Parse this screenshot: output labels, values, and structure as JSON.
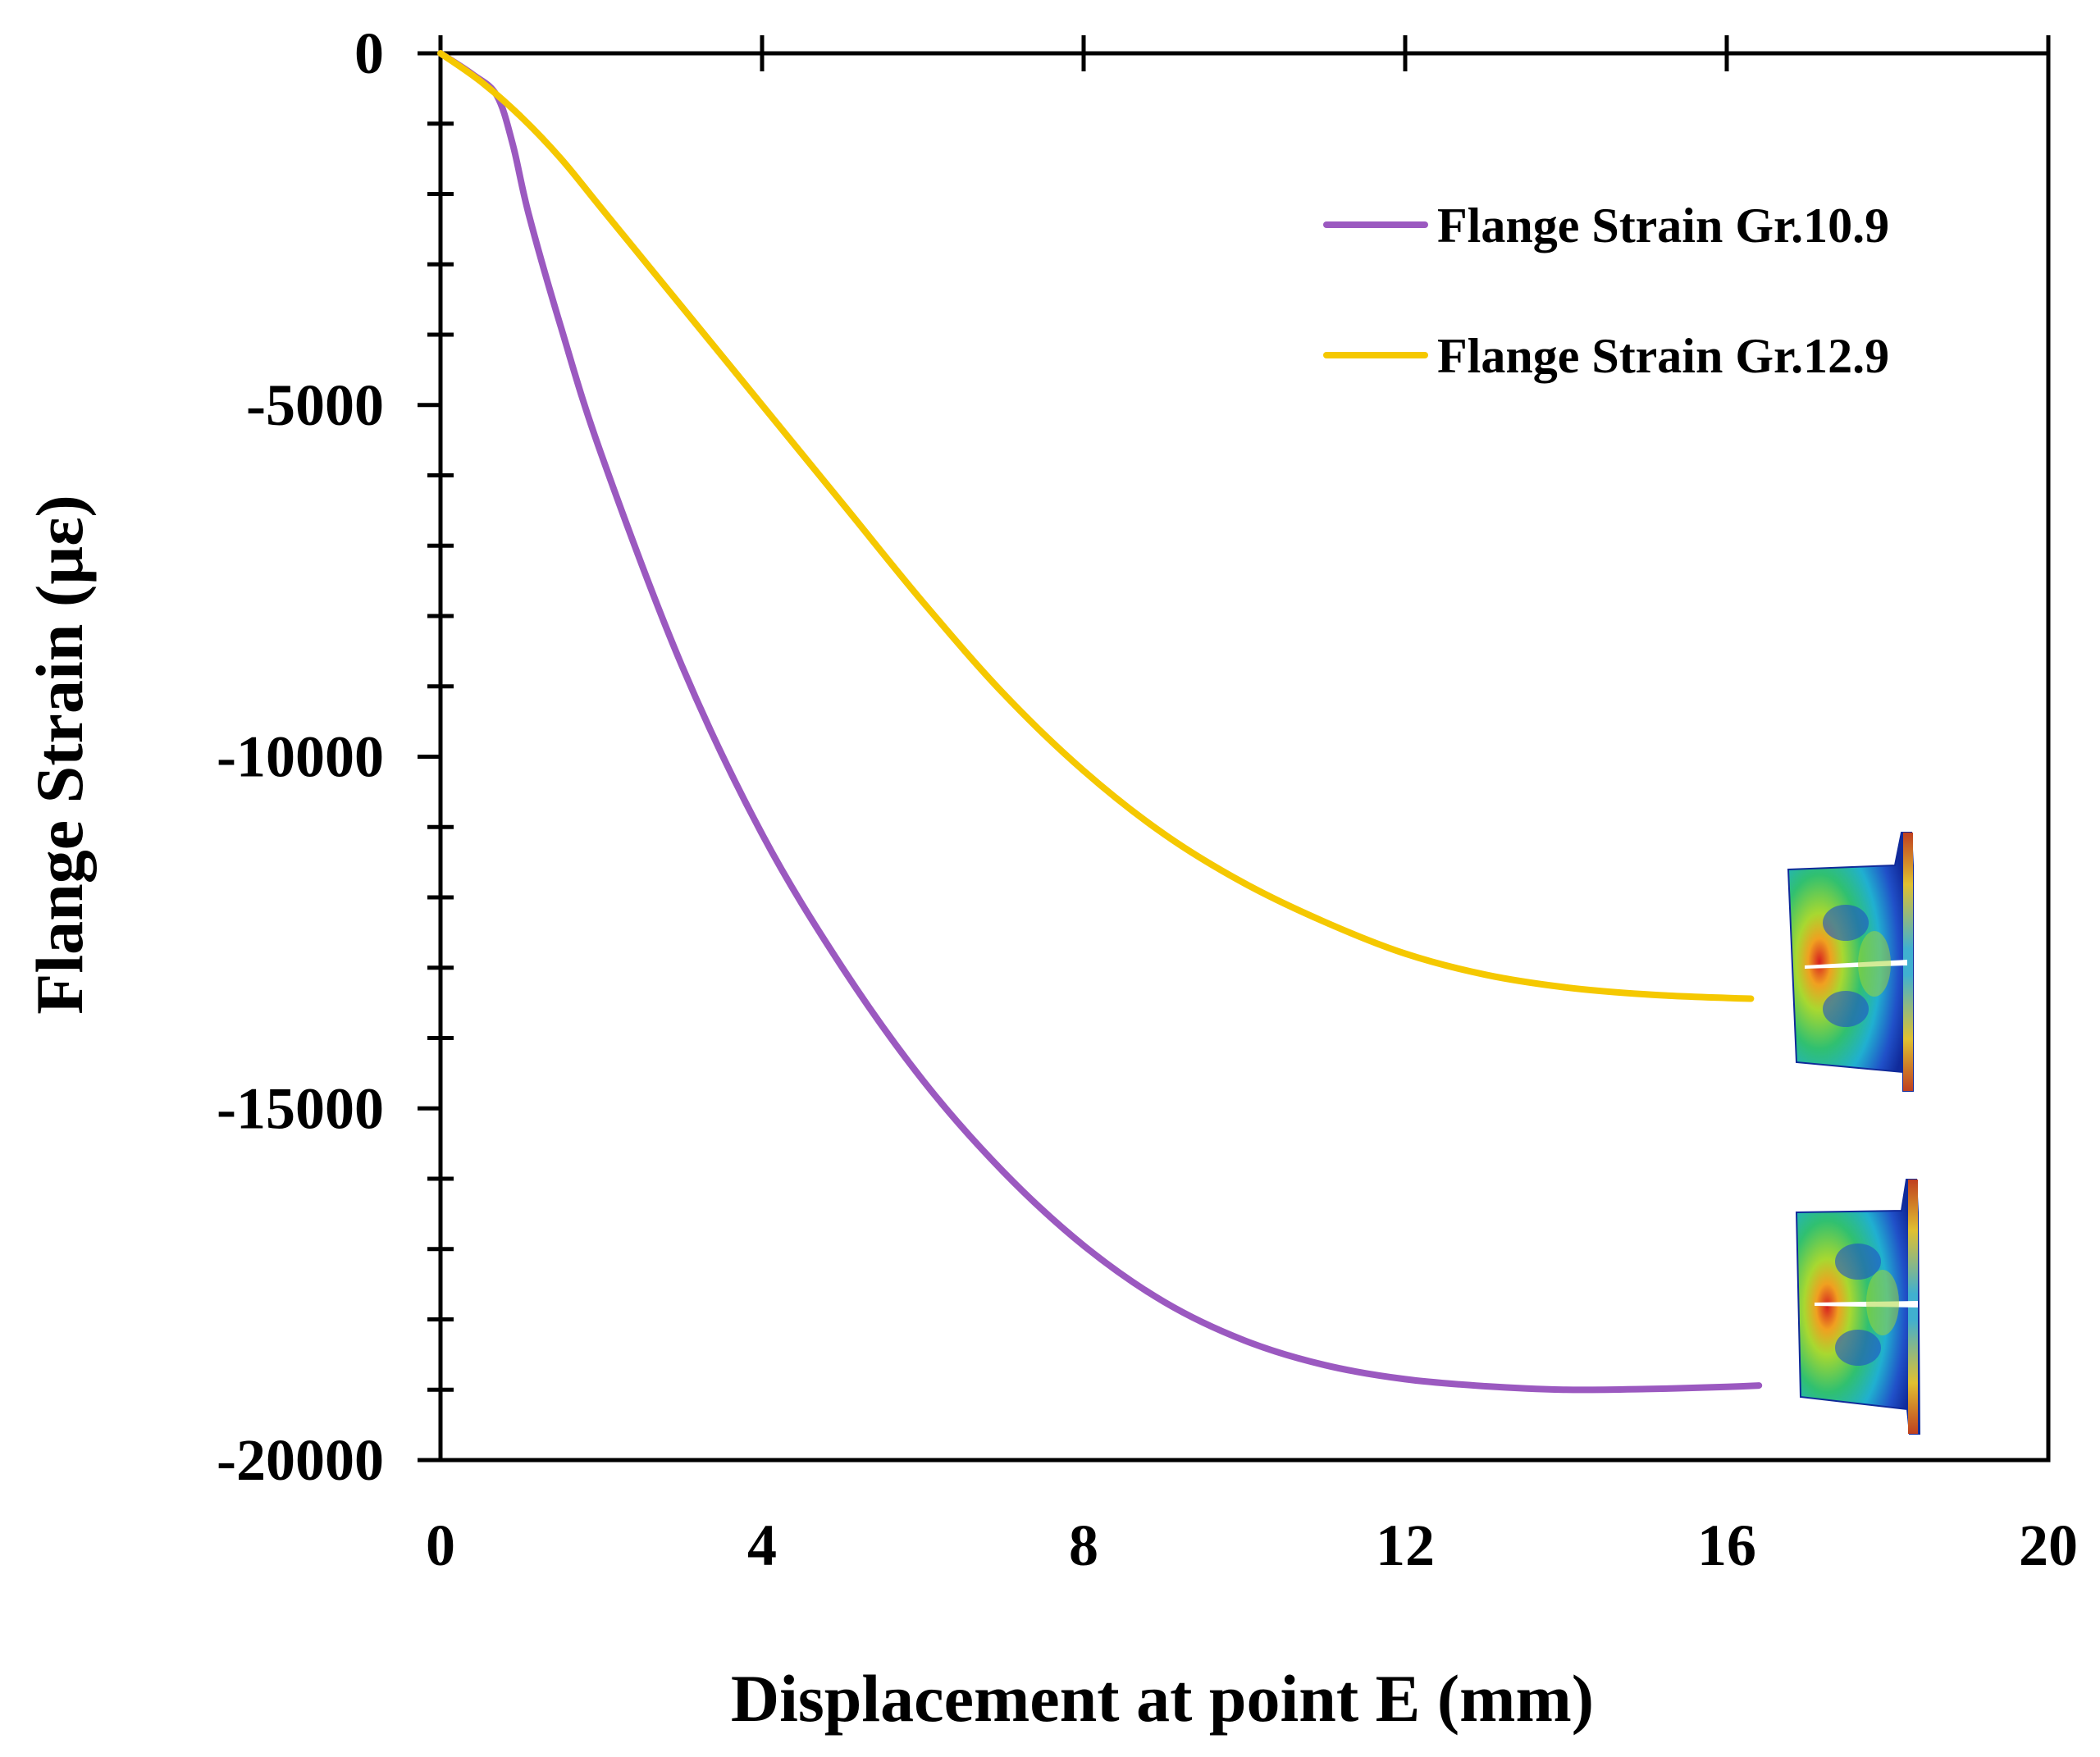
{
  "chart_data": {
    "type": "line",
    "title": "",
    "xlabel": "Displacement at point E (mm)",
    "ylabel": "Flange Strain (µε)",
    "xlim": [
      0,
      20
    ],
    "ylim": [
      -20000,
      0
    ],
    "x_ticks": [
      0,
      4,
      8,
      12,
      16,
      20
    ],
    "y_ticks": [
      0,
      -5000,
      -10000,
      -15000,
      -20000
    ],
    "x_tick_labels": [
      "0",
      "4",
      "8",
      "12",
      "16",
      "20"
    ],
    "y_tick_labels": [
      "0",
      "-5000",
      "-10000",
      "-15000",
      "-20000"
    ],
    "grid": false,
    "legend_position": "top-right",
    "series": [
      {
        "name": "Flange Strain Gr.10.9",
        "color": "#9B59C0",
        "x": [
          0,
          0.4,
          0.7,
          0.9,
          1.1,
          1.5,
          2,
          3,
          4,
          5,
          6,
          7,
          8,
          9,
          10,
          11,
          12,
          13,
          14,
          15,
          16,
          16.4
        ],
        "y": [
          0,
          -300,
          -600,
          -1300,
          -2300,
          -3900,
          -5700,
          -8700,
          -11100,
          -13000,
          -14600,
          -15900,
          -16950,
          -17750,
          -18300,
          -18650,
          -18850,
          -18950,
          -19000,
          -18990,
          -18960,
          -18940
        ]
      },
      {
        "name": "Flange Strain Gr.12.9",
        "color": "#F5C800",
        "x": [
          0,
          0.5,
          1,
          1.5,
          2,
          3,
          4,
          5,
          6,
          7,
          8,
          9,
          10,
          11,
          12,
          13,
          14,
          15,
          16,
          16.3
        ],
        "y": [
          0,
          -400,
          -900,
          -1500,
          -2200,
          -3600,
          -5000,
          -6400,
          -7800,
          -9100,
          -10200,
          -11100,
          -11800,
          -12350,
          -12800,
          -13100,
          -13280,
          -13380,
          -13430,
          -13440
        ]
      }
    ],
    "annotations": [
      {
        "type": "fe-contour-inset",
        "near_series": "Flange Strain Gr.12.9"
      },
      {
        "type": "fe-contour-inset",
        "near_series": "Flange Strain Gr.10.9"
      }
    ]
  }
}
